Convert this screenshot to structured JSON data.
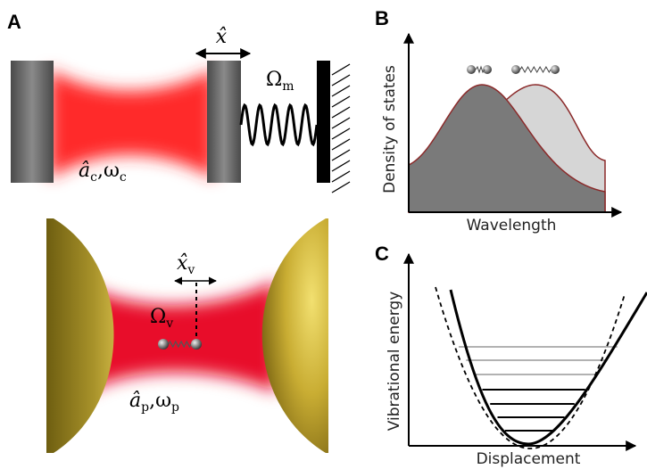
{
  "panels": {
    "a": "A",
    "b": "B",
    "c": "C"
  },
  "optomechanics": {
    "displacement": "x̂",
    "mechanical_frequency": {
      "symbol": "Ω",
      "sub": "m"
    },
    "cavity_mode": {
      "operator": "â",
      "operator_sub": "c",
      "separator": ",",
      "frequency": "ω",
      "frequency_sub": "c"
    }
  },
  "molecular": {
    "displacement": {
      "symbol": "x̂",
      "sub": "v"
    },
    "vibrational_frequency": {
      "symbol": "Ω",
      "sub": "v"
    },
    "plasmon_mode": {
      "operator": "â",
      "operator_sub": "p",
      "separator": ",",
      "frequency": "ω",
      "frequency_sub": "p"
    }
  },
  "density_plot": {
    "y_label": "Density of states",
    "x_label": "Wavelength"
  },
  "energy_plot": {
    "y_label": "Vibrational energy",
    "x_label": "Displacement"
  }
}
